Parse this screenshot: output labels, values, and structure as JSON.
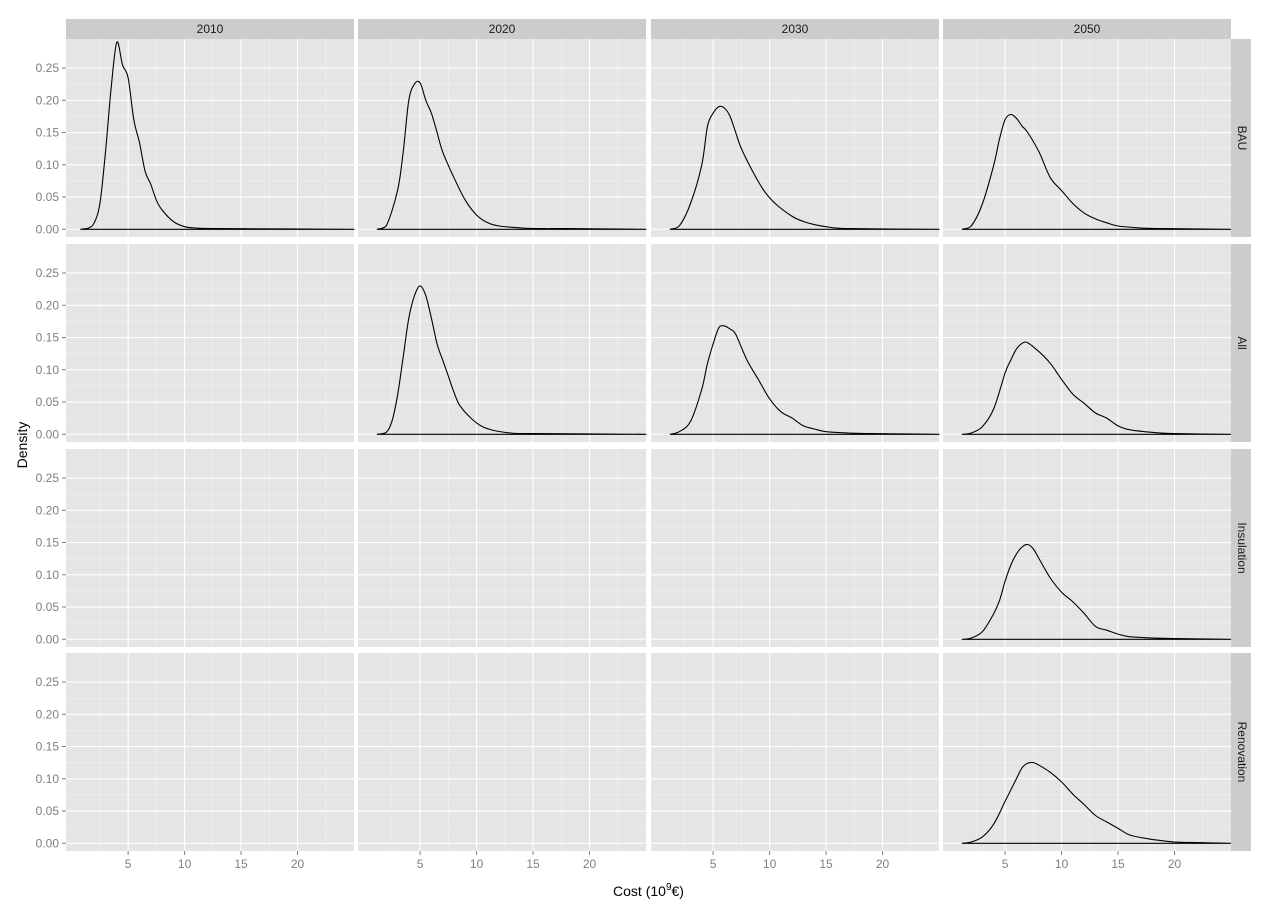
{
  "chart_data": {
    "type": "line",
    "subtype": "faceted density",
    "xlabel": "Cost (10^9€)",
    "xlabel_parts": {
      "prefix": "Cost (10",
      "sup": "9",
      "suffix": "€)"
    },
    "ylabel": "Density",
    "xlim": [
      -0.5,
      25
    ],
    "ylim": [
      -0.012,
      0.295
    ],
    "xticks": [
      5,
      10,
      15,
      20
    ],
    "yticks": [
      0.0,
      0.05,
      0.1,
      0.15,
      0.2,
      0.25
    ],
    "ytick_labels": [
      "0.00",
      "0.05",
      "0.10",
      "0.15",
      "0.20",
      "0.25"
    ],
    "grid": true,
    "column_facets": [
      "2010",
      "2020",
      "2030",
      "2050"
    ],
    "row_facets": [
      "BAU",
      "All",
      "Insulation",
      "Renovation"
    ],
    "panels": [
      {
        "column": "2010",
        "row": "BAU",
        "x_range": [
          0.8,
          25
        ],
        "series": [
          [
            0.8,
            0
          ],
          [
            1.5,
            0.002
          ],
          [
            2,
            0.01
          ],
          [
            2.5,
            0.04
          ],
          [
            3,
            0.12
          ],
          [
            3.5,
            0.22
          ],
          [
            4,
            0.29
          ],
          [
            4.5,
            0.255
          ],
          [
            5,
            0.235
          ],
          [
            5.5,
            0.17
          ],
          [
            6,
            0.135
          ],
          [
            6.5,
            0.09
          ],
          [
            7,
            0.07
          ],
          [
            7.5,
            0.045
          ],
          [
            8,
            0.03
          ],
          [
            9,
            0.012
          ],
          [
            10,
            0.004
          ],
          [
            11,
            0.002
          ],
          [
            13,
            0.001
          ],
          [
            25,
            0
          ]
        ]
      },
      {
        "column": "2020",
        "row": "BAU",
        "x_range": [
          1.2,
          25
        ],
        "series": [
          [
            1.2,
            0
          ],
          [
            2,
            0.005
          ],
          [
            3,
            0.06
          ],
          [
            3.5,
            0.12
          ],
          [
            4,
            0.2
          ],
          [
            4.5,
            0.225
          ],
          [
            5,
            0.227
          ],
          [
            5.5,
            0.2
          ],
          [
            6,
            0.18
          ],
          [
            6.5,
            0.15
          ],
          [
            7,
            0.12
          ],
          [
            8,
            0.08
          ],
          [
            9,
            0.045
          ],
          [
            10,
            0.022
          ],
          [
            11,
            0.01
          ],
          [
            12,
            0.005
          ],
          [
            14,
            0.002
          ],
          [
            16,
            0.001
          ],
          [
            18,
            0.001
          ],
          [
            25,
            0
          ]
        ]
      },
      {
        "column": "2030",
        "row": "BAU",
        "x_range": [
          1.2,
          25
        ],
        "series": [
          [
            1.2,
            0
          ],
          [
            2,
            0.005
          ],
          [
            3,
            0.04
          ],
          [
            4,
            0.1
          ],
          [
            4.5,
            0.16
          ],
          [
            5,
            0.18
          ],
          [
            5.5,
            0.19
          ],
          [
            6,
            0.188
          ],
          [
            6.5,
            0.175
          ],
          [
            7,
            0.15
          ],
          [
            7.5,
            0.125
          ],
          [
            8.5,
            0.09
          ],
          [
            9.5,
            0.06
          ],
          [
            10.5,
            0.04
          ],
          [
            12,
            0.02
          ],
          [
            13,
            0.012
          ],
          [
            14,
            0.007
          ],
          [
            15,
            0.004
          ],
          [
            17,
            0.001
          ],
          [
            25,
            0
          ]
        ]
      },
      {
        "column": "2050",
        "row": "BAU",
        "x_range": [
          1.2,
          25
        ],
        "series": [
          [
            1.2,
            0
          ],
          [
            2,
            0.005
          ],
          [
            3,
            0.04
          ],
          [
            4,
            0.1
          ],
          [
            4.5,
            0.14
          ],
          [
            5,
            0.17
          ],
          [
            5.5,
            0.178
          ],
          [
            6,
            0.172
          ],
          [
            6.5,
            0.16
          ],
          [
            7,
            0.15
          ],
          [
            8,
            0.12
          ],
          [
            9,
            0.08
          ],
          [
            10,
            0.06
          ],
          [
            11,
            0.04
          ],
          [
            12,
            0.025
          ],
          [
            13,
            0.016
          ],
          [
            14,
            0.01
          ],
          [
            15,
            0.005
          ],
          [
            17,
            0.002
          ],
          [
            19,
            0.001
          ],
          [
            25,
            0
          ]
        ]
      },
      {
        "column": "2020",
        "row": "All",
        "x_range": [
          1.2,
          25
        ],
        "series": [
          [
            1.2,
            0
          ],
          [
            2,
            0.003
          ],
          [
            2.5,
            0.02
          ],
          [
            3,
            0.06
          ],
          [
            3.5,
            0.12
          ],
          [
            4,
            0.18
          ],
          [
            4.5,
            0.215
          ],
          [
            5,
            0.23
          ],
          [
            5.5,
            0.215
          ],
          [
            6,
            0.18
          ],
          [
            6.5,
            0.14
          ],
          [
            7,
            0.115
          ],
          [
            7.5,
            0.09
          ],
          [
            8,
            0.065
          ],
          [
            8.5,
            0.045
          ],
          [
            9.5,
            0.025
          ],
          [
            10.5,
            0.012
          ],
          [
            11.5,
            0.006
          ],
          [
            13,
            0.002
          ],
          [
            15,
            0.001
          ],
          [
            25,
            0
          ]
        ]
      },
      {
        "column": "2030",
        "row": "All",
        "x_range": [
          1.2,
          25
        ],
        "series": [
          [
            1.2,
            0
          ],
          [
            2,
            0.004
          ],
          [
            3,
            0.02
          ],
          [
            4,
            0.07
          ],
          [
            4.5,
            0.11
          ],
          [
            5,
            0.14
          ],
          [
            5.5,
            0.165
          ],
          [
            6,
            0.168
          ],
          [
            6.5,
            0.163
          ],
          [
            7,
            0.155
          ],
          [
            8,
            0.115
          ],
          [
            9,
            0.085
          ],
          [
            10,
            0.055
          ],
          [
            11,
            0.035
          ],
          [
            12,
            0.025
          ],
          [
            13,
            0.013
          ],
          [
            14,
            0.008
          ],
          [
            15,
            0.004
          ],
          [
            17,
            0.002
          ],
          [
            19,
            0.001
          ],
          [
            25,
            0
          ]
        ]
      },
      {
        "column": "2050",
        "row": "All",
        "x_range": [
          1.2,
          25
        ],
        "series": [
          [
            1.2,
            0
          ],
          [
            2,
            0.002
          ],
          [
            3,
            0.012
          ],
          [
            4,
            0.04
          ],
          [
            5,
            0.095
          ],
          [
            5.5,
            0.115
          ],
          [
            6,
            0.132
          ],
          [
            6.5,
            0.141
          ],
          [
            7,
            0.142
          ],
          [
            8,
            0.128
          ],
          [
            9,
            0.11
          ],
          [
            10,
            0.085
          ],
          [
            11,
            0.062
          ],
          [
            12,
            0.048
          ],
          [
            13,
            0.033
          ],
          [
            14,
            0.025
          ],
          [
            15,
            0.013
          ],
          [
            16,
            0.007
          ],
          [
            18,
            0.003
          ],
          [
            20,
            0.001
          ],
          [
            25,
            0
          ]
        ]
      },
      {
        "column": "2050",
        "row": "Insulation",
        "x_range": [
          1.2,
          25
        ],
        "series": [
          [
            1.2,
            0
          ],
          [
            2,
            0.002
          ],
          [
            3,
            0.012
          ],
          [
            4,
            0.04
          ],
          [
            4.5,
            0.06
          ],
          [
            5,
            0.09
          ],
          [
            5.5,
            0.115
          ],
          [
            6,
            0.132
          ],
          [
            6.5,
            0.143
          ],
          [
            7,
            0.147
          ],
          [
            7.5,
            0.14
          ],
          [
            8,
            0.125
          ],
          [
            9,
            0.095
          ],
          [
            10,
            0.073
          ],
          [
            11,
            0.058
          ],
          [
            12,
            0.04
          ],
          [
            13,
            0.02
          ],
          [
            14,
            0.014
          ],
          [
            15,
            0.008
          ],
          [
            16,
            0.004
          ],
          [
            18,
            0.002
          ],
          [
            20,
            0.001
          ],
          [
            25,
            0
          ]
        ]
      },
      {
        "column": "2050",
        "row": "Renovation",
        "x_range": [
          1.2,
          25
        ],
        "series": [
          [
            1.2,
            0
          ],
          [
            2,
            0.002
          ],
          [
            3,
            0.01
          ],
          [
            4,
            0.03
          ],
          [
            5,
            0.065
          ],
          [
            6,
            0.1
          ],
          [
            6.5,
            0.117
          ],
          [
            7,
            0.124
          ],
          [
            7.5,
            0.125
          ],
          [
            8,
            0.121
          ],
          [
            9,
            0.11
          ],
          [
            10,
            0.095
          ],
          [
            11,
            0.076
          ],
          [
            12,
            0.06
          ],
          [
            13,
            0.043
          ],
          [
            14,
            0.033
          ],
          [
            15,
            0.023
          ],
          [
            16,
            0.013
          ],
          [
            17,
            0.009
          ],
          [
            18,
            0.006
          ],
          [
            20,
            0.002
          ],
          [
            22,
            0.001
          ],
          [
            25,
            0
          ]
        ]
      }
    ]
  }
}
